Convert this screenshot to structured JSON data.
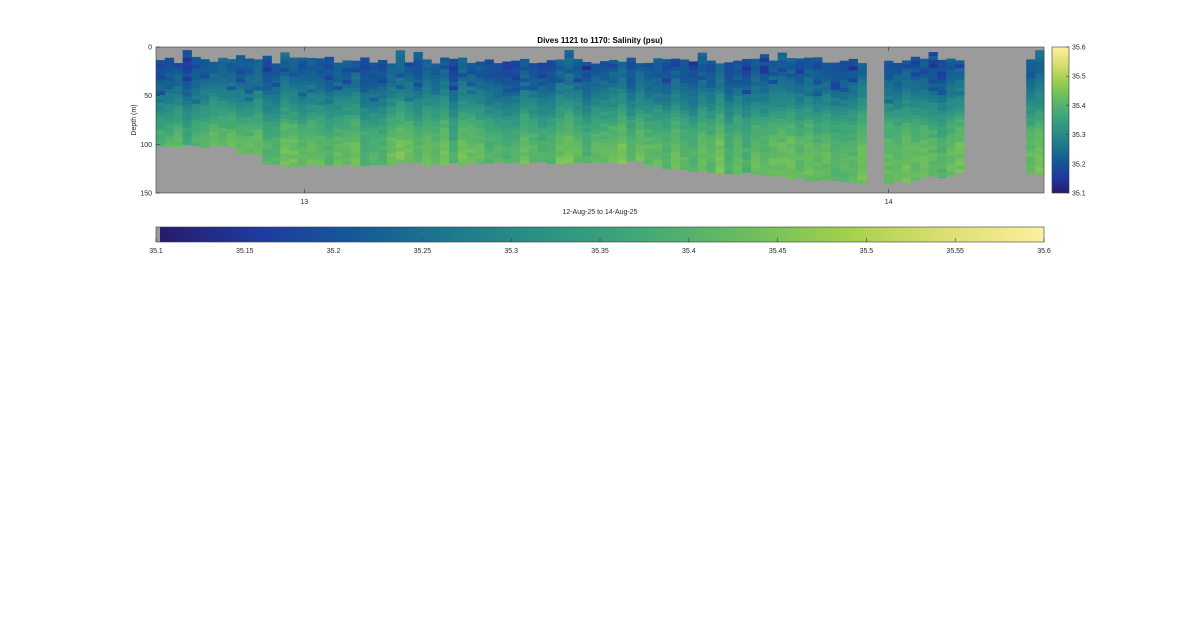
{
  "chart_data": {
    "type": "heatmap",
    "title": "Dives 1121 to 1170: Salinity (psu)",
    "xlabel": "12-Aug-25 to 14-Aug-25",
    "ylabel": "Depth (m)",
    "x_tick_labels": [
      "13",
      "14"
    ],
    "y_ticks": [
      0,
      50,
      100,
      150
    ],
    "ylim": [
      0,
      150
    ],
    "y_reversed": true,
    "value_range": [
      35.1,
      35.6
    ],
    "colorbar_vertical_ticks": [
      35.1,
      35.2,
      35.3,
      35.4,
      35.5,
      35.6
    ],
    "colorbar_horizontal_ticks": [
      35.1,
      35.15,
      35.2,
      35.25,
      35.3,
      35.35,
      35.4,
      35.45,
      35.5,
      35.55,
      35.6
    ],
    "colormap": "parula-like (dark blue -> teal -> green -> yellow)",
    "colormap_stops": [
      "#271b6b",
      "#1f3aa0",
      "#145a96",
      "#1f7a8c",
      "#2e9483",
      "#45aa75",
      "#6cbe5e",
      "#a3d04e",
      "#dcdf72",
      "#fdf0a0"
    ],
    "nodata_color": "#9b9b9b",
    "surface_layer_depth_m": [
      0,
      15
    ],
    "fresh_core_depth_m": [
      15,
      55
    ],
    "max_depth_range_m": [
      105,
      145
    ],
    "gaps": [
      "between dive ~37 and ~38",
      "dives ~43 to ~49 (no data)"
    ],
    "salinity_by_depth_typical": [
      {
        "depth": 10,
        "value": 35.22
      },
      {
        "depth": 20,
        "value": 35.2
      },
      {
        "depth": 40,
        "value": 35.24
      },
      {
        "depth": 60,
        "value": 35.3
      },
      {
        "depth": 80,
        "value": 35.37
      },
      {
        "depth": 100,
        "value": 35.41
      },
      {
        "depth": 120,
        "value": 35.42
      },
      {
        "depth": 140,
        "value": 35.42
      }
    ]
  }
}
